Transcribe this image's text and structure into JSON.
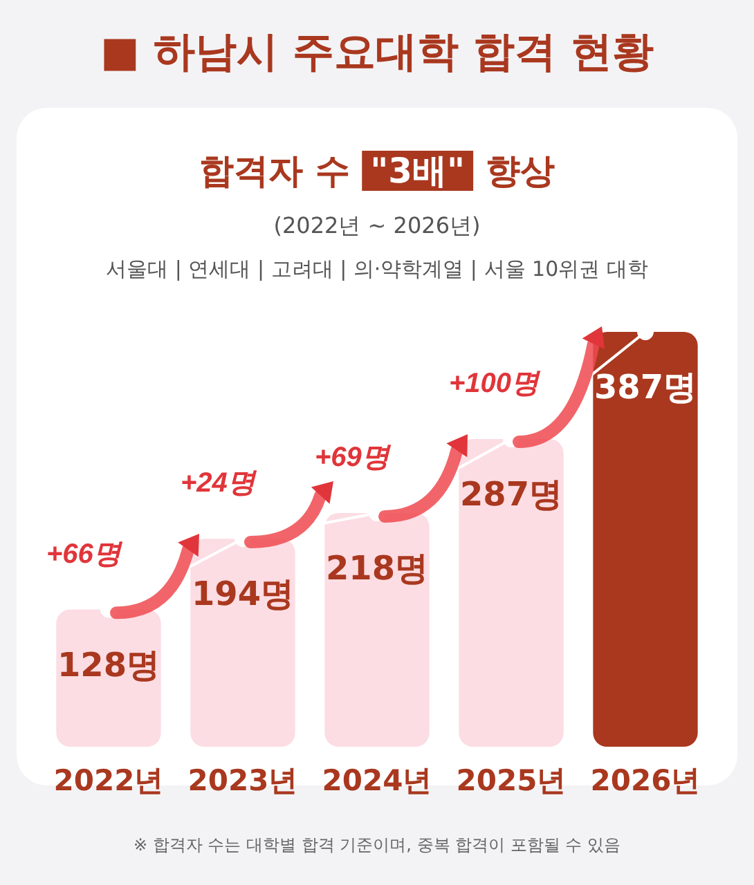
{
  "chart_data": {
    "type": "bar",
    "title": "■ 하남시 주요대학 합격 현황",
    "subtitle": "합격자 수 \"3배\" 향상",
    "categories": [
      "2022년",
      "2023년",
      "2024년",
      "2025년",
      "2026년"
    ],
    "series": [
      {
        "colors": [
          "#fcdde3",
          "#fcdde3",
          "#fcdde3",
          "#fcdde3",
          "#a9381f"
        ],
        "values": [
          128,
          194,
          218,
          287,
          387
        ],
        "value_labels": [
          "128명",
          "194명",
          "218명",
          "287명",
          "387명"
        ]
      },
      {
        "type": "line",
        "color": "#ffffff",
        "values": [
          128,
          194,
          218,
          287,
          387
        ],
        "marker": "circle"
      }
    ],
    "annotations": [
      "(2022년 ~ 2026년)",
      "서울대 | 연세대 | 고려대 | 의·약학계열 | 서울 10위권 대학",
      "+66명",
      "+24명",
      "+69명",
      "+100명",
      "※ 합격자 수는 대학별 합격 기준이며, 중복 합격이 포함될 수 있음"
    ]
  }
}
